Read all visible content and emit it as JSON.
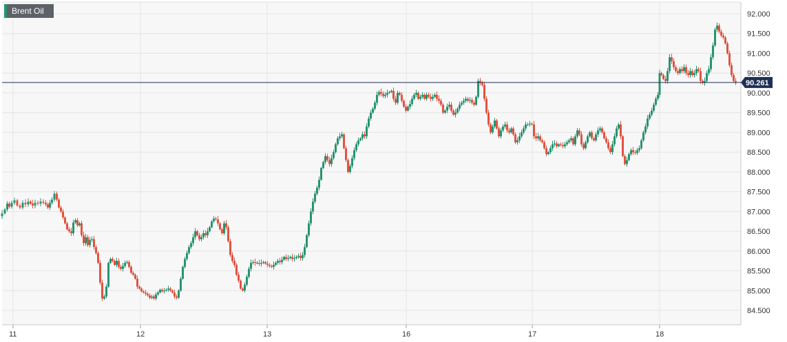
{
  "chart_data": {
    "type": "candlestick",
    "title": "Brent Oil",
    "x_tick_labels": [
      "11",
      "12",
      "13",
      "16",
      "17",
      "18"
    ],
    "y_ticks": [
      "84.500",
      "85.000",
      "85.500",
      "86.000",
      "86.500",
      "87.000",
      "87.500",
      "88.000",
      "88.500",
      "89.000",
      "89.500",
      "90.000",
      "90.500",
      "91.000",
      "91.500",
      "92.000"
    ],
    "ylim": [
      84.3,
      92.2
    ],
    "last_price": 90.261,
    "last_price_label": "90.261",
    "grid": true,
    "colors": {
      "up": "#27936f",
      "down": "#e0533f",
      "price_line": "#1f2f55",
      "grid": "#e4e4e4"
    },
    "price_path": [
      [
        0,
        86.88
      ],
      [
        4,
        86.95
      ],
      [
        8,
        87.05
      ],
      [
        11,
        87.2
      ],
      [
        14,
        87.12
      ],
      [
        18,
        87.22
      ],
      [
        22,
        87.28
      ],
      [
        26,
        87.15
      ],
      [
        30,
        87.1
      ],
      [
        34,
        87.22
      ],
      [
        38,
        87.18
      ],
      [
        42,
        87.25
      ],
      [
        45,
        87.2
      ],
      [
        48,
        87.15
      ],
      [
        52,
        87.22
      ],
      [
        56,
        87.2
      ],
      [
        60,
        87.25
      ],
      [
        64,
        87.22
      ],
      [
        67,
        87.18
      ],
      [
        70,
        87.1
      ],
      [
        73,
        87.22
      ],
      [
        76,
        87.3
      ],
      [
        80,
        87.45
      ],
      [
        83,
        87.3
      ],
      [
        86,
        87.1
      ],
      [
        89,
        87.0
      ],
      [
        92,
        86.85
      ],
      [
        95,
        86.7
      ],
      [
        98,
        86.55
      ],
      [
        101,
        86.5
      ],
      [
        104,
        86.45
      ],
      [
        107,
        86.72
      ],
      [
        110,
        86.78
      ],
      [
        113,
        86.65
      ],
      [
        116,
        86.7
      ],
      [
        119,
        86.4
      ],
      [
        122,
        86.2
      ],
      [
        125,
        86.35
      ],
      [
        128,
        86.15
      ],
      [
        131,
        86.28
      ],
      [
        134,
        86.3
      ],
      [
        137,
        86.1
      ],
      [
        140,
        85.95
      ],
      [
        143,
        85.7
      ],
      [
        146,
        85.2
      ],
      [
        149,
        84.8
      ],
      [
        152,
        84.85
      ],
      [
        155,
        85.1
      ],
      [
        158,
        85.7
      ],
      [
        161,
        85.8
      ],
      [
        164,
        85.75
      ],
      [
        167,
        85.65
      ],
      [
        170,
        85.75
      ],
      [
        173,
        85.6
      ],
      [
        176,
        85.55
      ],
      [
        179,
        85.62
      ],
      [
        182,
        85.7
      ],
      [
        185,
        85.72
      ],
      [
        188,
        85.6
      ],
      [
        191,
        85.45
      ],
      [
        194,
        85.4
      ],
      [
        197,
        85.3
      ],
      [
        200,
        85.1
      ],
      [
        203,
        85.05
      ],
      [
        206,
        84.98
      ],
      [
        209,
        84.95
      ],
      [
        212,
        84.92
      ],
      [
        215,
        84.88
      ],
      [
        218,
        84.82
      ],
      [
        221,
        84.85
      ],
      [
        224,
        84.8
      ],
      [
        227,
        84.9
      ],
      [
        230,
        84.95
      ],
      [
        233,
        85.02
      ],
      [
        236,
        84.98
      ],
      [
        239,
        85.0
      ],
      [
        242,
        85.02
      ],
      [
        245,
        85.05
      ],
      [
        248,
        85.0
      ],
      [
        251,
        84.95
      ],
      [
        254,
        84.85
      ],
      [
        257,
        84.82
      ],
      [
        260,
        85.0
      ],
      [
        263,
        85.3
      ],
      [
        266,
        85.6
      ],
      [
        269,
        85.8
      ],
      [
        272,
        85.95
      ],
      [
        275,
        86.1
      ],
      [
        278,
        86.2
      ],
      [
        281,
        86.35
      ],
      [
        284,
        86.5
      ],
      [
        287,
        86.4
      ],
      [
        290,
        86.3
      ],
      [
        293,
        86.35
      ],
      [
        296,
        86.45
      ],
      [
        299,
        86.4
      ],
      [
        302,
        86.5
      ],
      [
        305,
        86.6
      ],
      [
        308,
        86.75
      ],
      [
        311,
        86.82
      ],
      [
        314,
        86.8
      ],
      [
        317,
        86.7
      ],
      [
        320,
        86.55
      ],
      [
        323,
        86.45
      ],
      [
        326,
        86.7
      ],
      [
        329,
        86.6
      ],
      [
        332,
        86.25
      ],
      [
        335,
        85.9
      ],
      [
        338,
        85.75
      ],
      [
        341,
        85.65
      ],
      [
        344,
        85.4
      ],
      [
        347,
        85.25
      ],
      [
        350,
        85.05
      ],
      [
        353,
        85.0
      ],
      [
        356,
        85.15
      ],
      [
        359,
        85.35
      ],
      [
        362,
        85.55
      ],
      [
        365,
        85.7
      ],
      [
        368,
        85.72
      ],
      [
        371,
        85.7
      ],
      [
        374,
        85.7
      ],
      [
        377,
        85.68
      ],
      [
        380,
        85.7
      ],
      [
        383,
        85.72
      ],
      [
        386,
        85.68
      ],
      [
        389,
        85.65
      ],
      [
        392,
        85.62
      ],
      [
        395,
        85.6
      ],
      [
        398,
        85.65
      ],
      [
        401,
        85.7
      ],
      [
        404,
        85.75
      ],
      [
        407,
        85.72
      ],
      [
        410,
        85.78
      ],
      [
        413,
        85.85
      ],
      [
        416,
        85.8
      ],
      [
        419,
        85.82
      ],
      [
        422,
        85.85
      ],
      [
        425,
        85.8
      ],
      [
        428,
        85.82
      ],
      [
        431,
        85.85
      ],
      [
        434,
        85.88
      ],
      [
        437,
        85.82
      ],
      [
        440,
        85.9
      ],
      [
        443,
        86.1
      ],
      [
        446,
        86.4
      ],
      [
        449,
        86.7
      ],
      [
        452,
        87.0
      ],
      [
        455,
        87.25
      ],
      [
        458,
        87.45
      ],
      [
        461,
        87.6
      ],
      [
        464,
        87.8
      ],
      [
        467,
        88.1
      ],
      [
        470,
        88.25
      ],
      [
        473,
        88.4
      ],
      [
        476,
        88.3
      ],
      [
        479,
        88.2
      ],
      [
        482,
        88.35
      ],
      [
        485,
        88.5
      ],
      [
        488,
        88.7
      ],
      [
        491,
        88.85
      ],
      [
        494,
        88.9
      ],
      [
        497,
        88.95
      ],
      [
        500,
        88.6
      ],
      [
        503,
        88.3
      ],
      [
        506,
        88.0
      ],
      [
        509,
        88.15
      ],
      [
        512,
        88.35
      ],
      [
        515,
        88.55
      ],
      [
        518,
        88.7
      ],
      [
        521,
        88.8
      ],
      [
        524,
        88.85
      ],
      [
        527,
        88.95
      ],
      [
        530,
        88.9
      ],
      [
        533,
        89.15
      ],
      [
        536,
        89.35
      ],
      [
        539,
        89.5
      ],
      [
        542,
        89.6
      ],
      [
        545,
        89.75
      ],
      [
        548,
        89.95
      ],
      [
        551,
        90.02
      ],
      [
        554,
        89.98
      ],
      [
        557,
        89.92
      ],
      [
        560,
        89.95
      ],
      [
        563,
        90.0
      ],
      [
        566,
        90.02
      ],
      [
        569,
        90.05
      ],
      [
        572,
        89.85
      ],
      [
        575,
        89.75
      ],
      [
        578,
        90.0
      ],
      [
        581,
        89.95
      ],
      [
        584,
        89.8
      ],
      [
        587,
        89.65
      ],
      [
        590,
        89.55
      ],
      [
        593,
        89.65
      ],
      [
        596,
        89.72
      ],
      [
        599,
        89.85
      ],
      [
        602,
        89.95
      ],
      [
        605,
        90.0
      ],
      [
        608,
        89.85
      ],
      [
        611,
        89.9
      ],
      [
        614,
        89.95
      ],
      [
        617,
        89.85
      ],
      [
        620,
        89.95
      ],
      [
        623,
        89.9
      ],
      [
        626,
        89.85
      ],
      [
        629,
        89.9
      ],
      [
        632,
        89.95
      ],
      [
        635,
        89.85
      ],
      [
        638,
        89.8
      ],
      [
        641,
        89.7
      ],
      [
        644,
        89.5
      ],
      [
        647,
        89.55
      ],
      [
        650,
        89.65
      ],
      [
        653,
        89.7
      ],
      [
        656,
        89.55
      ],
      [
        659,
        89.45
      ],
      [
        662,
        89.5
      ],
      [
        665,
        89.6
      ],
      [
        668,
        89.7
      ],
      [
        671,
        89.75
      ],
      [
        674,
        89.8
      ],
      [
        677,
        89.85
      ],
      [
        680,
        89.8
      ],
      [
        683,
        89.82
      ],
      [
        686,
        89.75
      ],
      [
        689,
        89.7
      ],
      [
        692,
        89.9
      ],
      [
        695,
        90.3
      ],
      [
        698,
        90.25
      ],
      [
        701,
        90.2
      ],
      [
        704,
        89.85
      ],
      [
        707,
        89.5
      ],
      [
        710,
        89.2
      ],
      [
        713,
        89.0
      ],
      [
        716,
        89.15
      ],
      [
        719,
        89.3
      ],
      [
        722,
        89.1
      ],
      [
        725,
        88.9
      ],
      [
        728,
        89.05
      ],
      [
        731,
        89.15
      ],
      [
        734,
        89.2
      ],
      [
        737,
        89.05
      ],
      [
        740,
        89.0
      ],
      [
        743,
        89.1
      ],
      [
        746,
        88.95
      ],
      [
        749,
        88.75
      ],
      [
        752,
        88.8
      ],
      [
        755,
        88.9
      ],
      [
        758,
        89.0
      ],
      [
        761,
        89.1
      ],
      [
        764,
        89.2
      ],
      [
        767,
        89.2
      ],
      [
        770,
        89.22
      ],
      [
        773,
        89.2
      ],
      [
        776,
        88.9
      ],
      [
        779,
        88.85
      ],
      [
        782,
        88.9
      ],
      [
        785,
        88.8
      ],
      [
        788,
        88.75
      ],
      [
        791,
        88.6
      ],
      [
        794,
        88.45
      ],
      [
        797,
        88.5
      ],
      [
        800,
        88.6
      ],
      [
        803,
        88.7
      ],
      [
        806,
        88.72
      ],
      [
        809,
        88.65
      ],
      [
        812,
        88.7
      ],
      [
        815,
        88.68
      ],
      [
        818,
        88.65
      ],
      [
        821,
        88.7
      ],
      [
        824,
        88.75
      ],
      [
        827,
        88.8
      ],
      [
        830,
        88.85
      ],
      [
        833,
        88.7
      ],
      [
        836,
        88.9
      ],
      [
        839,
        89.05
      ],
      [
        842,
        88.95
      ],
      [
        845,
        88.7
      ],
      [
        848,
        88.6
      ],
      [
        851,
        88.75
      ],
      [
        854,
        88.9
      ],
      [
        857,
        89.0
      ],
      [
        860,
        88.85
      ],
      [
        863,
        88.8
      ],
      [
        866,
        88.95
      ],
      [
        869,
        89.05
      ],
      [
        872,
        89.1
      ],
      [
        875,
        89.0
      ],
      [
        878,
        88.85
      ],
      [
        881,
        88.75
      ],
      [
        884,
        88.6
      ],
      [
        887,
        88.5
      ],
      [
        890,
        88.7
      ],
      [
        893,
        88.9
      ],
      [
        896,
        89.1
      ],
      [
        899,
        89.2
      ],
      [
        902,
        88.9
      ],
      [
        905,
        88.4
      ],
      [
        908,
        88.2
      ],
      [
        911,
        88.3
      ],
      [
        914,
        88.45
      ],
      [
        917,
        88.55
      ],
      [
        920,
        88.5
      ],
      [
        923,
        88.48
      ],
      [
        926,
        88.55
      ],
      [
        929,
        88.6
      ],
      [
        932,
        88.8
      ],
      [
        935,
        89.0
      ],
      [
        938,
        89.15
      ],
      [
        941,
        89.35
      ],
      [
        944,
        89.45
      ],
      [
        947,
        89.55
      ],
      [
        950,
        89.7
      ],
      [
        953,
        89.85
      ],
      [
        956,
        89.95
      ],
      [
        958,
        90.5
      ],
      [
        961,
        90.45
      ],
      [
        964,
        90.35
      ],
      [
        967,
        90.3
      ],
      [
        970,
        90.55
      ],
      [
        973,
        90.9
      ],
      [
        976,
        90.8
      ],
      [
        979,
        90.65
      ],
      [
        982,
        90.55
      ],
      [
        985,
        90.5
      ],
      [
        988,
        90.6
      ],
      [
        991,
        90.55
      ],
      [
        994,
        90.65
      ],
      [
        997,
        90.5
      ],
      [
        1000,
        90.45
      ],
      [
        1003,
        90.55
      ],
      [
        1006,
        90.45
      ],
      [
        1009,
        90.5
      ],
      [
        1012,
        90.6
      ],
      [
        1015,
        90.55
      ],
      [
        1018,
        90.3
      ],
      [
        1021,
        90.25
      ],
      [
        1024,
        90.3
      ],
      [
        1027,
        90.5
      ],
      [
        1030,
        90.6
      ],
      [
        1033,
        90.9
      ],
      [
        1036,
        91.2
      ],
      [
        1039,
        91.6
      ],
      [
        1042,
        91.7
      ],
      [
        1045,
        91.55
      ],
      [
        1048,
        91.45
      ],
      [
        1051,
        91.4
      ],
      [
        1054,
        91.25
      ],
      [
        1057,
        91.0
      ],
      [
        1060,
        90.7
      ],
      [
        1063,
        90.45
      ],
      [
        1066,
        90.3
      ],
      [
        1069,
        90.26
      ]
    ]
  }
}
